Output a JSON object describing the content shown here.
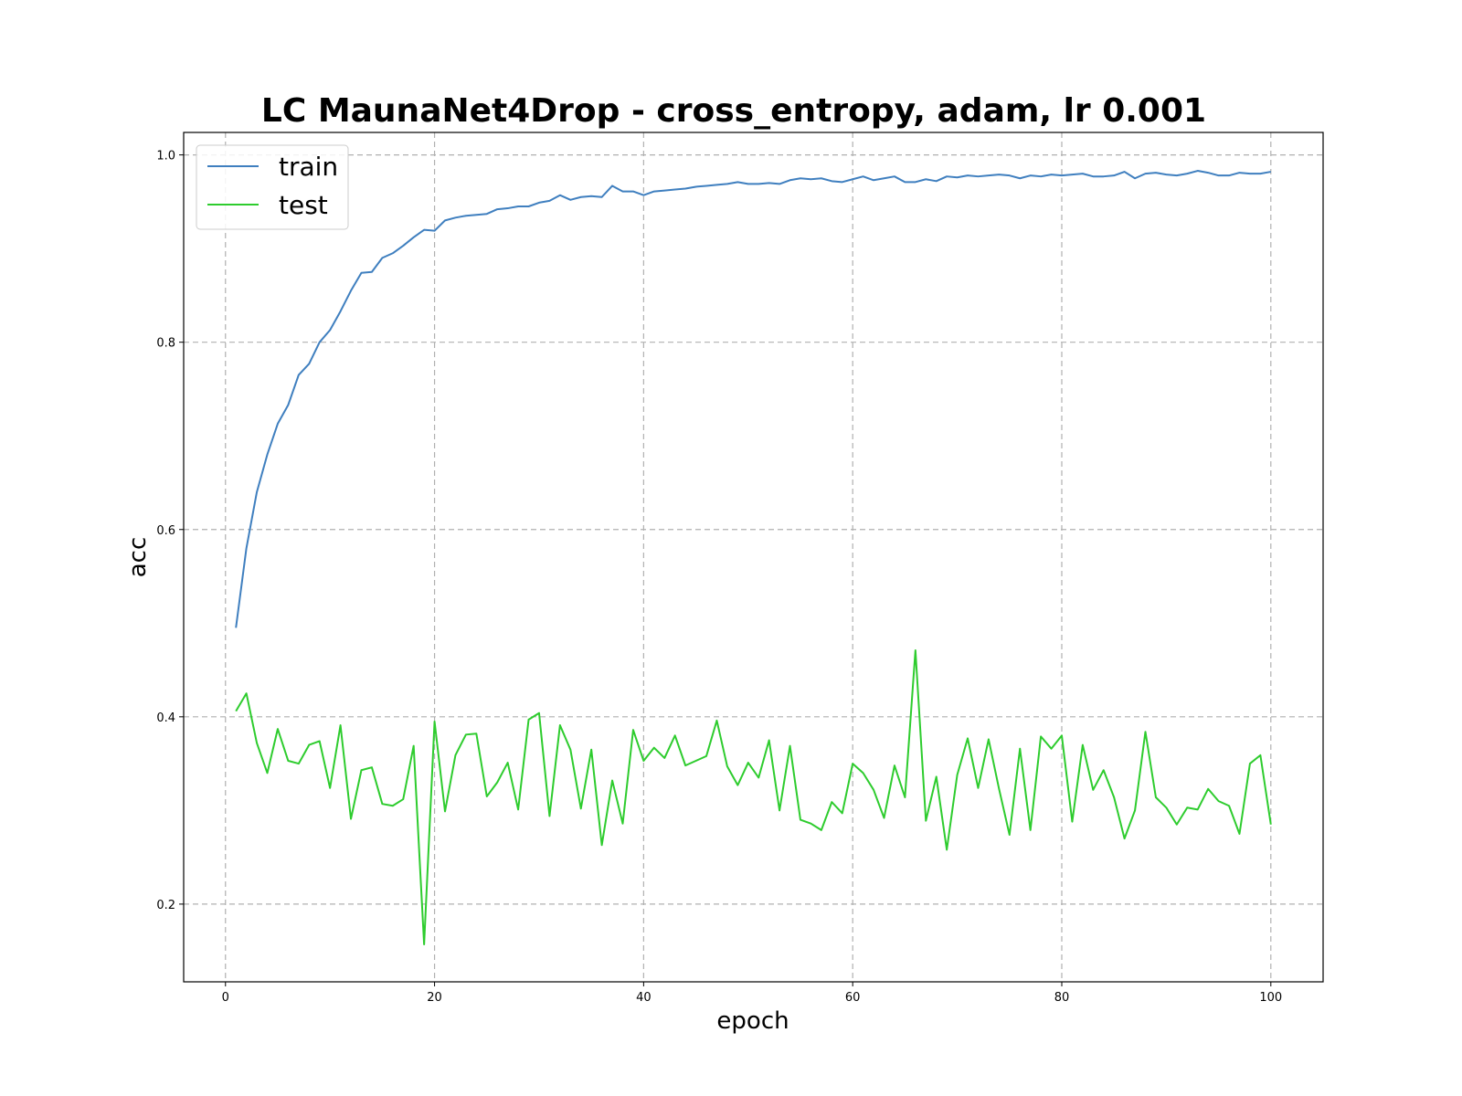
{
  "chart_data": {
    "type": "line",
    "title": "LC MaunaNet4Drop - cross_entropy, adam, lr 0.001",
    "xlabel": "epoch",
    "ylabel": "acc",
    "xlim": [
      -4,
      105
    ],
    "ylim": [
      0.117,
      1.024
    ],
    "xticks": [
      0,
      20,
      40,
      60,
      80,
      100
    ],
    "yticks": [
      0.2,
      0.4,
      0.6,
      0.8,
      1.0
    ],
    "xtick_labels": [
      "0",
      "20",
      "40",
      "60",
      "80",
      "100"
    ],
    "ytick_labels": [
      "0.2",
      "0.4",
      "0.6",
      "0.8",
      "1.0"
    ],
    "grid": true,
    "legend_position": "top-left",
    "x": [
      1,
      2,
      3,
      4,
      5,
      6,
      7,
      8,
      9,
      10,
      11,
      12,
      13,
      14,
      15,
      16,
      17,
      18,
      19,
      20,
      21,
      22,
      23,
      24,
      25,
      26,
      27,
      28,
      29,
      30,
      31,
      32,
      33,
      34,
      35,
      36,
      37,
      38,
      39,
      40,
      41,
      42,
      43,
      44,
      45,
      46,
      47,
      48,
      49,
      50,
      51,
      52,
      53,
      54,
      55,
      56,
      57,
      58,
      59,
      60,
      61,
      62,
      63,
      64,
      65,
      66,
      67,
      68,
      69,
      70,
      71,
      72,
      73,
      74,
      75,
      76,
      77,
      78,
      79,
      80,
      81,
      82,
      83,
      84,
      85,
      86,
      87,
      88,
      89,
      90,
      91,
      92,
      93,
      94,
      95,
      96,
      97,
      98,
      99,
      100
    ],
    "series": [
      {
        "name": "train",
        "color": "#3f7fbf",
        "values": [
          0.495,
          0.58,
          0.64,
          0.68,
          0.713,
          0.733,
          0.765,
          0.777,
          0.8,
          0.813,
          0.833,
          0.855,
          0.874,
          0.875,
          0.89,
          0.895,
          0.903,
          0.912,
          0.92,
          0.919,
          0.93,
          0.933,
          0.935,
          0.936,
          0.937,
          0.942,
          0.943,
          0.945,
          0.945,
          0.949,
          0.951,
          0.957,
          0.952,
          0.955,
          0.956,
          0.955,
          0.967,
          0.961,
          0.961,
          0.957,
          0.961,
          0.962,
          0.963,
          0.964,
          0.966,
          0.967,
          0.968,
          0.969,
          0.971,
          0.969,
          0.969,
          0.97,
          0.969,
          0.973,
          0.975,
          0.974,
          0.975,
          0.972,
          0.971,
          0.974,
          0.977,
          0.973,
          0.975,
          0.977,
          0.971,
          0.971,
          0.974,
          0.972,
          0.977,
          0.976,
          0.978,
          0.977,
          0.978,
          0.979,
          0.978,
          0.975,
          0.978,
          0.977,
          0.979,
          0.978,
          0.979,
          0.98,
          0.977,
          0.977,
          0.978,
          0.982,
          0.975,
          0.98,
          0.981,
          0.979,
          0.978,
          0.98,
          0.983,
          0.981,
          0.978,
          0.978,
          0.981,
          0.98,
          0.98,
          0.982
        ]
      },
      {
        "name": "test",
        "color": "#2ecc2e",
        "values": [
          0.406,
          0.425,
          0.372,
          0.34,
          0.387,
          0.353,
          0.35,
          0.37,
          0.374,
          0.324,
          0.391,
          0.291,
          0.343,
          0.346,
          0.307,
          0.305,
          0.312,
          0.369,
          0.157,
          0.395,
          0.299,
          0.359,
          0.381,
          0.382,
          0.315,
          0.33,
          0.351,
          0.301,
          0.397,
          0.404,
          0.294,
          0.391,
          0.365,
          0.302,
          0.365,
          0.263,
          0.332,
          0.286,
          0.386,
          0.353,
          0.367,
          0.356,
          0.38,
          0.348,
          0.353,
          0.358,
          0.396,
          0.347,
          0.327,
          0.351,
          0.335,
          0.375,
          0.3,
          0.369,
          0.29,
          0.286,
          0.279,
          0.309,
          0.297,
          0.35,
          0.34,
          0.322,
          0.292,
          0.348,
          0.314,
          0.471,
          0.289,
          0.336,
          0.258,
          0.338,
          0.377,
          0.324,
          0.376,
          0.323,
          0.274,
          0.366,
          0.279,
          0.379,
          0.366,
          0.38,
          0.288,
          0.37,
          0.322,
          0.343,
          0.314,
          0.27,
          0.3,
          0.384,
          0.314,
          0.303,
          0.285,
          0.303,
          0.301,
          0.323,
          0.31,
          0.305,
          0.275,
          0.35,
          0.359,
          0.285
        ]
      }
    ]
  }
}
